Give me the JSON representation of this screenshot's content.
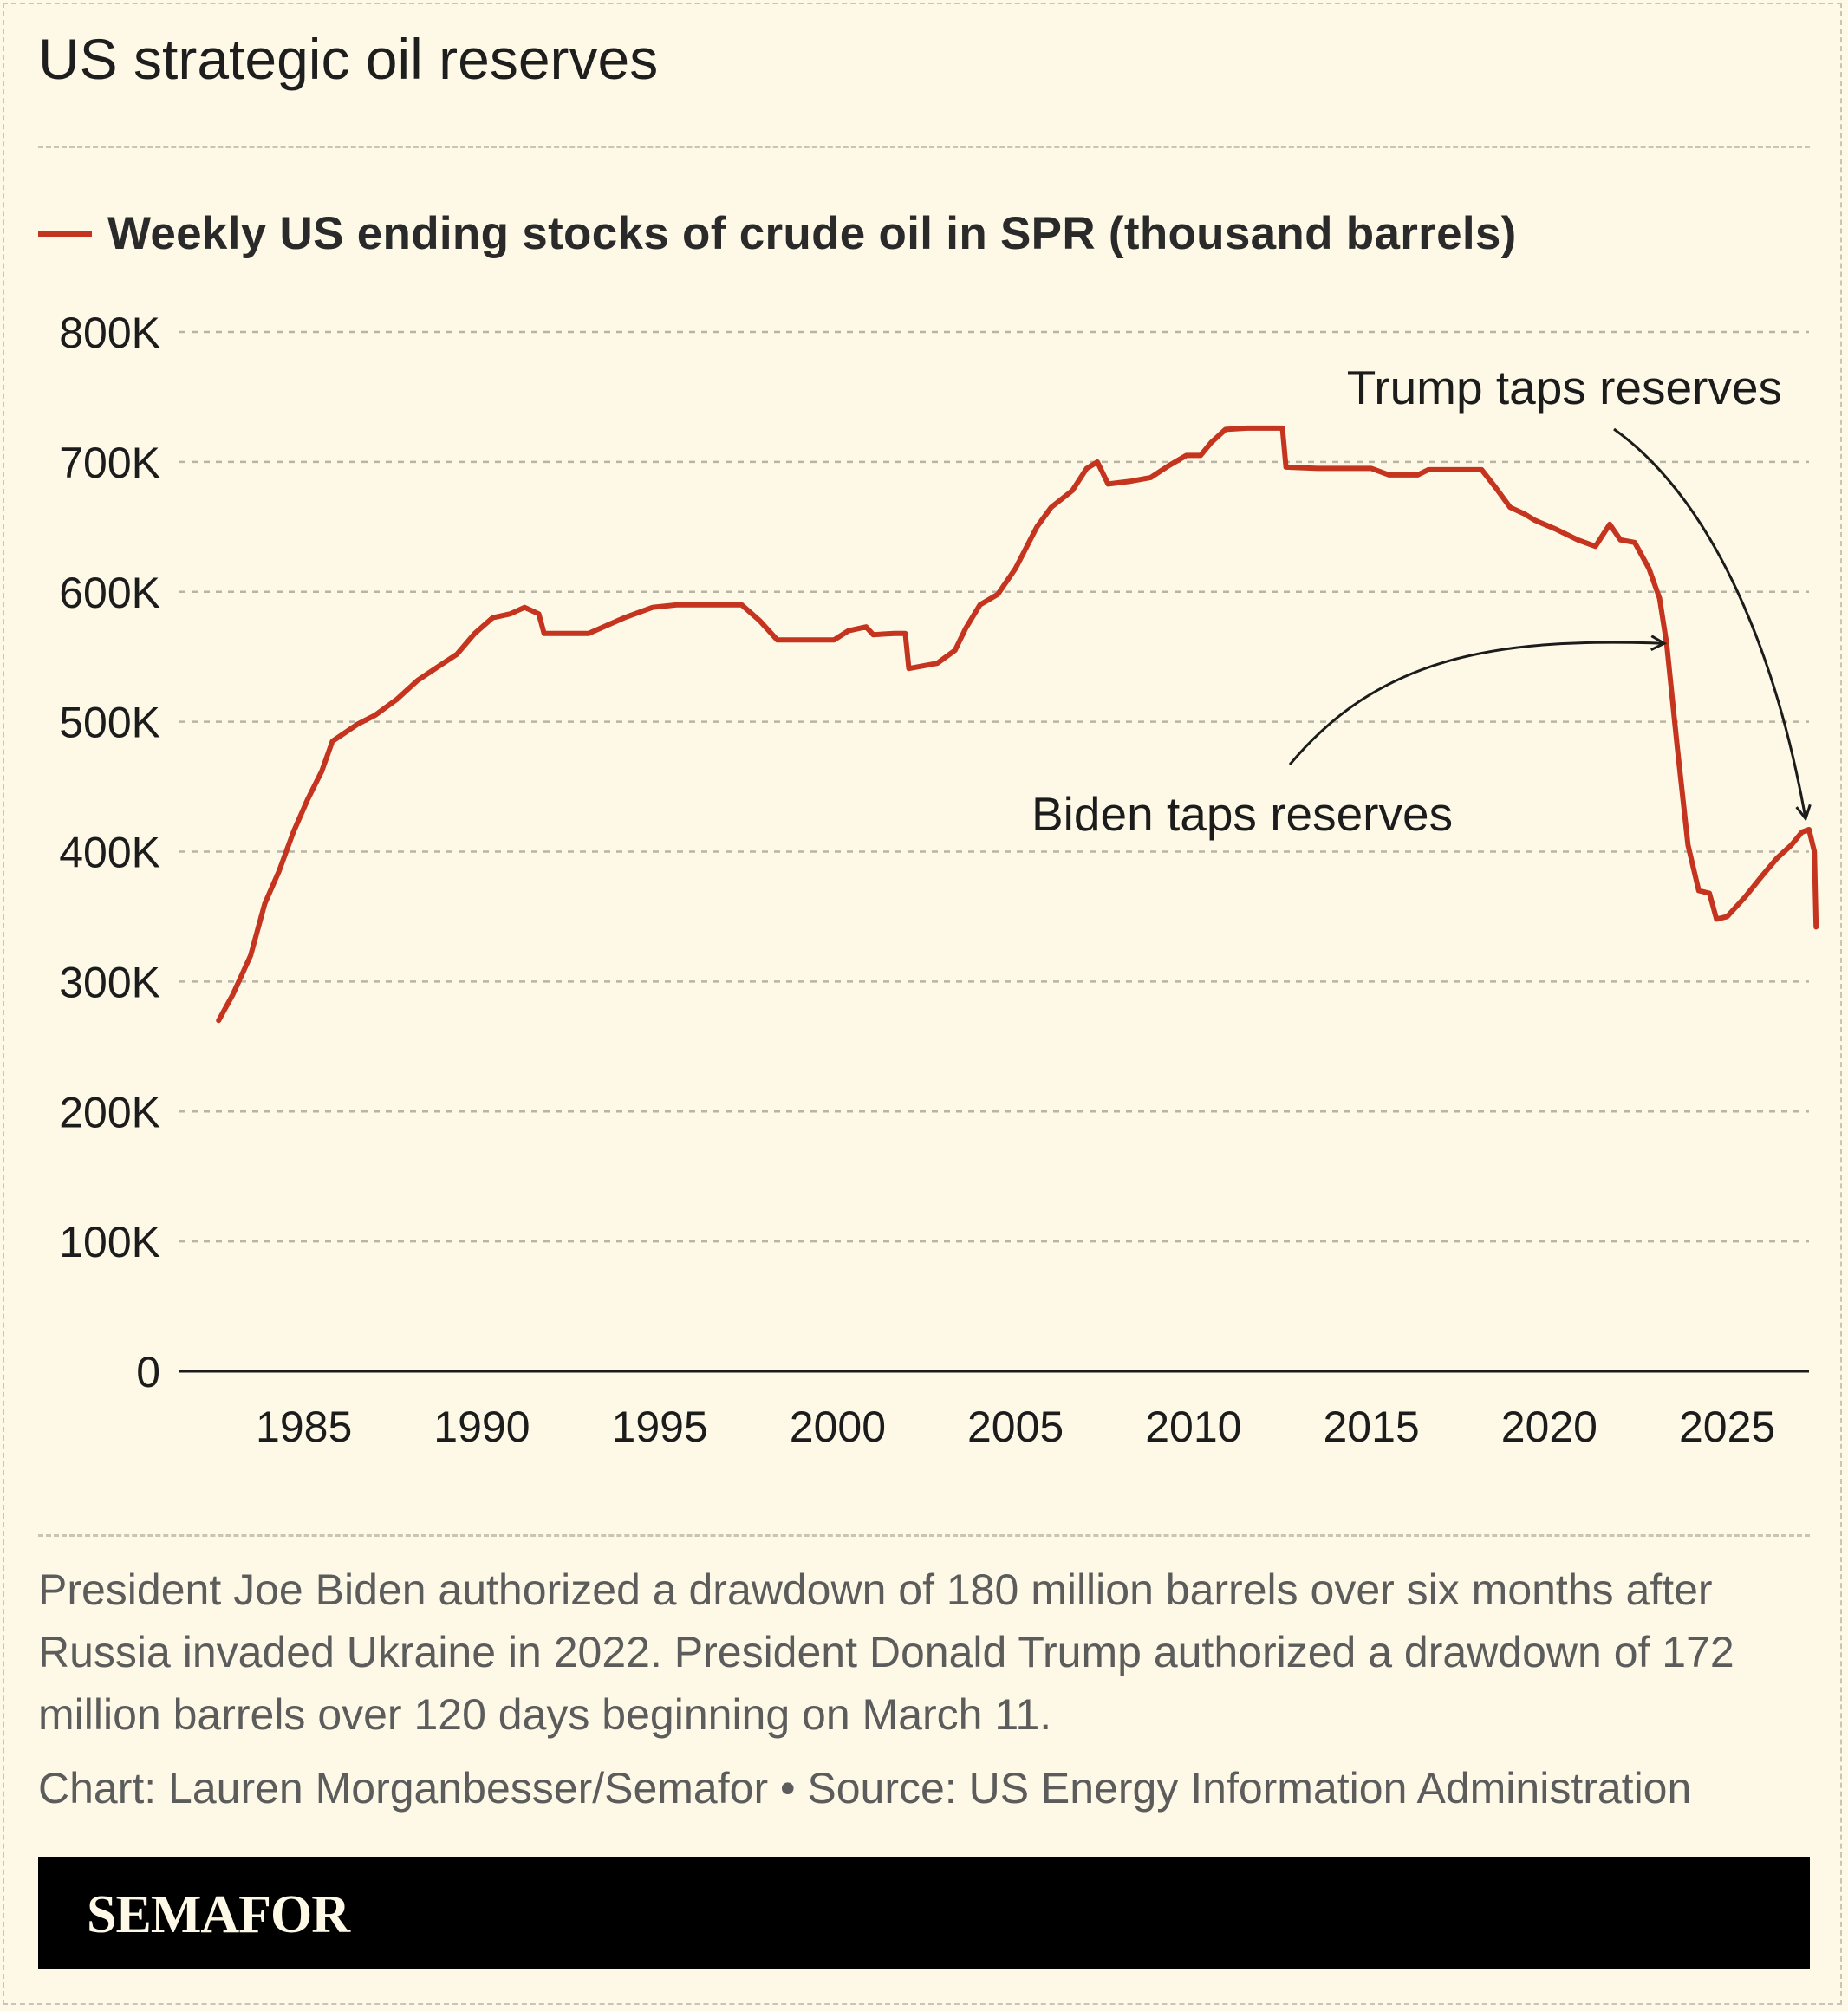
{
  "title": "US strategic oil reserves",
  "legend": {
    "label": "Weekly US ending stocks of crude oil in SPR (thousand barrels)"
  },
  "colors": {
    "series": "#c4341f",
    "background": "#fdf9e6",
    "grid": "#b9b5a6",
    "footer": "#000000"
  },
  "chart_data": {
    "type": "line",
    "title": "US strategic oil reserves",
    "xlabel": "",
    "ylabel": "",
    "xlim": [
      1981.5,
      2027.3
    ],
    "ylim": [
      0,
      800000
    ],
    "x_ticks": [
      1985,
      1990,
      1995,
      2000,
      2005,
      2010,
      2015,
      2020,
      2025
    ],
    "y_ticks": [
      {
        "value": 0,
        "label": "0"
      },
      {
        "value": 100000,
        "label": "100K"
      },
      {
        "value": 200000,
        "label": "200K"
      },
      {
        "value": 300000,
        "label": "300K"
      },
      {
        "value": 400000,
        "label": "400K"
      },
      {
        "value": 500000,
        "label": "500K"
      },
      {
        "value": 600000,
        "label": "600K"
      },
      {
        "value": 700000,
        "label": "700K"
      },
      {
        "value": 800000,
        "label": "800K"
      }
    ],
    "grid": "horizontal dashed",
    "legend_position": "top-left",
    "series": [
      {
        "name": "Weekly US ending stocks of crude oil in SPR (thousand barrels)",
        "points": [
          [
            1982.6,
            270000
          ],
          [
            1983.0,
            290000
          ],
          [
            1983.5,
            320000
          ],
          [
            1983.9,
            360000
          ],
          [
            1984.3,
            385000
          ],
          [
            1984.7,
            415000
          ],
          [
            1985.1,
            440000
          ],
          [
            1985.5,
            462000
          ],
          [
            1985.8,
            485000
          ],
          [
            1986.5,
            498000
          ],
          [
            1987.0,
            505000
          ],
          [
            1987.6,
            517000
          ],
          [
            1988.2,
            532000
          ],
          [
            1988.8,
            543000
          ],
          [
            1989.3,
            552000
          ],
          [
            1989.8,
            568000
          ],
          [
            1990.3,
            580000
          ],
          [
            1990.8,
            583000
          ],
          [
            1991.2,
            588000
          ],
          [
            1991.6,
            583000
          ],
          [
            1991.75,
            568000
          ],
          [
            1993.0,
            568000
          ],
          [
            1994.0,
            580000
          ],
          [
            1994.8,
            588000
          ],
          [
            1995.5,
            590000
          ],
          [
            1997.3,
            590000
          ],
          [
            1997.8,
            578000
          ],
          [
            1998.3,
            563000
          ],
          [
            1999.0,
            563000
          ],
          [
            1999.9,
            563000
          ],
          [
            2000.3,
            570000
          ],
          [
            2000.8,
            573000
          ],
          [
            2001.0,
            567000
          ],
          [
            2001.6,
            568000
          ],
          [
            2001.9,
            568000
          ],
          [
            2002.0,
            541000
          ],
          [
            2002.8,
            545000
          ],
          [
            2003.3,
            555000
          ],
          [
            2003.6,
            572000
          ],
          [
            2004.0,
            590000
          ],
          [
            2004.5,
            598000
          ],
          [
            2005.0,
            618000
          ],
          [
            2005.6,
            650000
          ],
          [
            2006.0,
            665000
          ],
          [
            2006.6,
            678000
          ],
          [
            2007.0,
            695000
          ],
          [
            2007.3,
            700000
          ],
          [
            2007.6,
            683000
          ],
          [
            2008.2,
            685000
          ],
          [
            2008.8,
            688000
          ],
          [
            2009.3,
            697000
          ],
          [
            2009.8,
            705000
          ],
          [
            2010.2,
            705000
          ],
          [
            2010.5,
            715000
          ],
          [
            2010.9,
            725000
          ],
          [
            2011.5,
            726000
          ],
          [
            2012.5,
            726000
          ],
          [
            2012.6,
            696000
          ],
          [
            2013.5,
            695000
          ],
          [
            2014.0,
            695000
          ],
          [
            2015.0,
            695000
          ],
          [
            2015.5,
            690000
          ],
          [
            2016.3,
            690000
          ],
          [
            2016.6,
            694000
          ],
          [
            2017.5,
            694000
          ],
          [
            2018.1,
            694000
          ],
          [
            2018.5,
            680000
          ],
          [
            2018.9,
            665000
          ],
          [
            2019.3,
            660000
          ],
          [
            2019.6,
            655000
          ],
          [
            2020.2,
            648000
          ],
          [
            2020.8,
            640000
          ],
          [
            2021.3,
            635000
          ],
          [
            2021.7,
            652000
          ],
          [
            2022.0,
            640000
          ],
          [
            2022.4,
            638000
          ],
          [
            2022.8,
            618000
          ],
          [
            2023.1,
            595000
          ],
          [
            2023.3,
            560000
          ],
          [
            2023.6,
            480000
          ],
          [
            2023.9,
            405000
          ],
          [
            2024.2,
            370000
          ],
          [
            2024.5,
            368000
          ],
          [
            2024.7,
            348000
          ],
          [
            2025.0,
            350000
          ],
          [
            2025.5,
            365000
          ],
          [
            2026.0,
            382000
          ],
          [
            2026.4,
            395000
          ],
          [
            2026.8,
            405000
          ],
          [
            2027.1,
            415000
          ],
          [
            2027.3,
            417000
          ],
          [
            2027.45,
            400000
          ],
          [
            2027.5,
            342000
          ]
        ]
      }
    ],
    "annotations": [
      {
        "text": "Trump taps reserves",
        "x": 2027.2,
        "y": 418000
      },
      {
        "text": "Biden taps reserves",
        "x": 2023.5,
        "y": 555000
      }
    ]
  },
  "note": "President Joe Biden authorized a drawdown of 180 million barrels over six months after Russia invaded Ukraine in 2022. President Donald Trump authorized a drawdown of 172 million barrels over 120 days beginning on March 11.",
  "credit": "Chart: Lauren Morganbesser/Semafor • Source: US Energy Information Administration",
  "brand": "SEMAFOR"
}
